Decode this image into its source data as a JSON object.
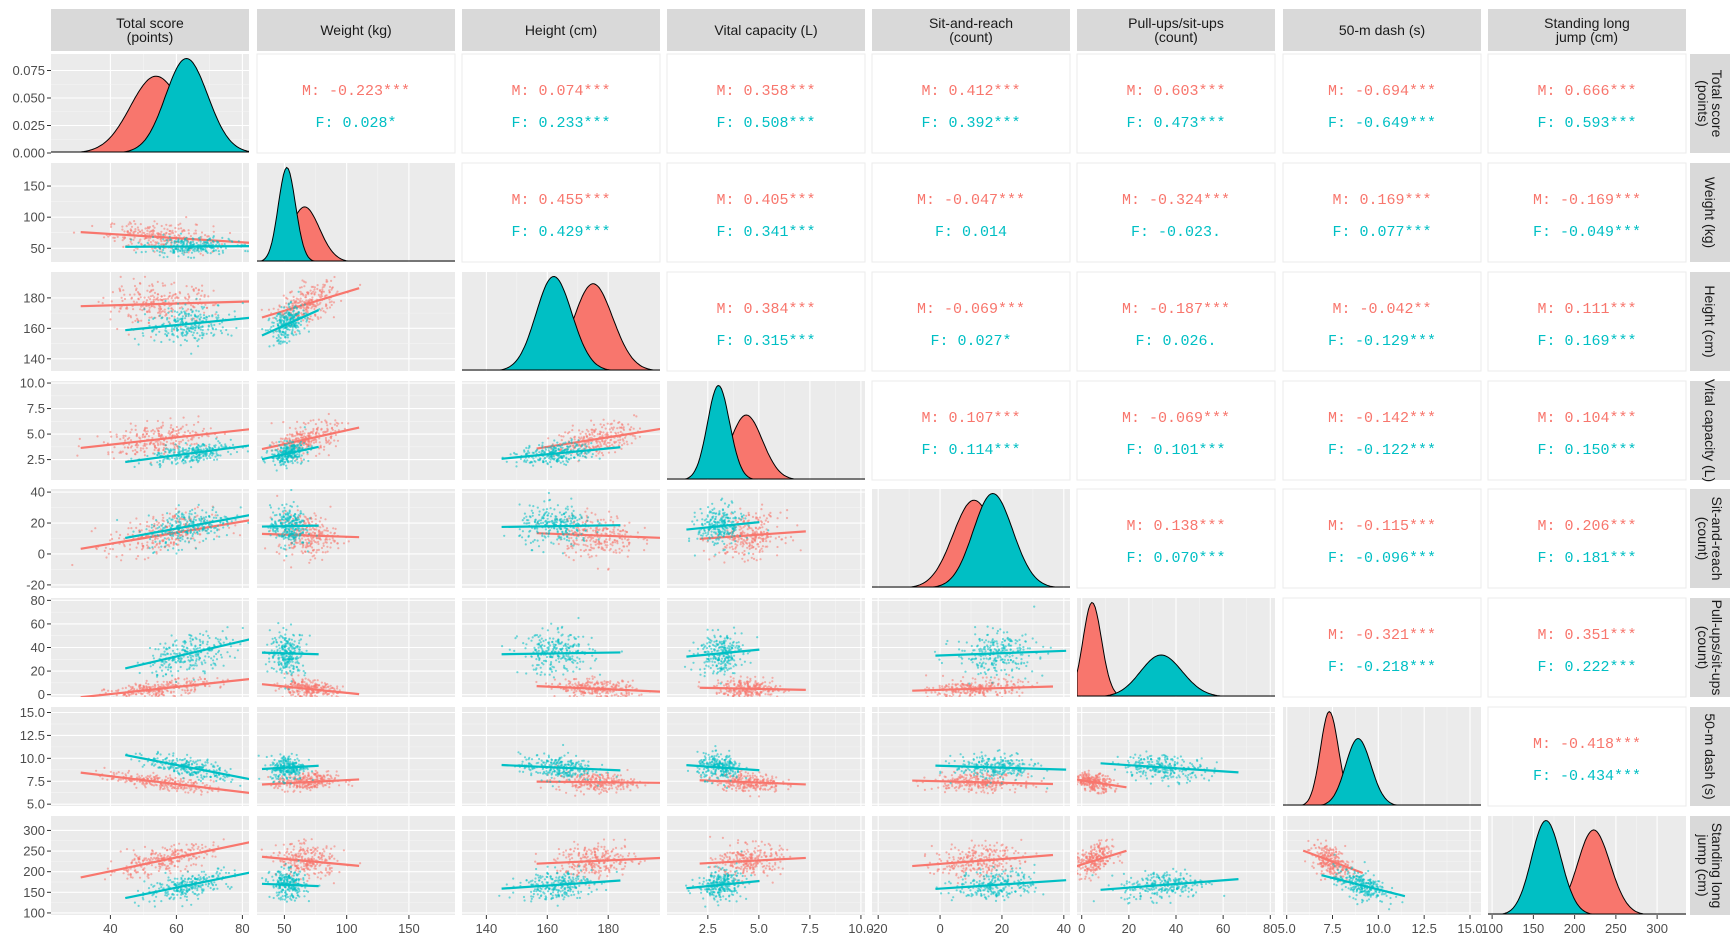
{
  "chart_data": {
    "type": "scatter",
    "title": "",
    "legend": "none",
    "grid": true,
    "groups": [
      {
        "key": "M",
        "label": "M",
        "color": "#F8766D"
      },
      {
        "key": "F",
        "label": "F",
        "color": "#00BFC4"
      }
    ],
    "variables": [
      {
        "name": "total_score",
        "label": [
          "Total score",
          "(points)"
        ],
        "row_label": [
          "Total score",
          "(points)"
        ],
        "range": [
          22,
          82
        ],
        "ticks": [
          {
            "v": 40,
            "label": "40"
          },
          {
            "v": 60,
            "label": "60"
          },
          {
            "v": 80,
            "label": "80"
          }
        ],
        "mean": {
          "M": 55,
          "F": 64
        },
        "sd": {
          "M": 8,
          "F": 6.5
        }
      },
      {
        "name": "weight",
        "label": [
          "Weight (kg)"
        ],
        "row_label": [
          "Weight (kg)"
        ],
        "range": [
          28,
          187
        ],
        "ticks": [
          {
            "v": 50,
            "label": "50"
          },
          {
            "v": 100,
            "label": "100"
          },
          {
            "v": 150,
            "label": "150"
          }
        ],
        "mean": {
          "M": 68,
          "F": 53
        },
        "sd": {
          "M": 12,
          "F": 7
        }
      },
      {
        "name": "height",
        "label": [
          "Height (cm)"
        ],
        "row_label": [
          "Height (cm)"
        ],
        "range": [
          132,
          197
        ],
        "ticks": [
          {
            "v": 140,
            "label": "140"
          },
          {
            "v": 160,
            "label": "160"
          },
          {
            "v": 180,
            "label": "180"
          }
        ],
        "mean": {
          "M": 176,
          "F": 163
        },
        "sd": {
          "M": 6.5,
          "F": 6
        }
      },
      {
        "name": "vital_capacity",
        "label": [
          "Vital capacity (L)"
        ],
        "row_label": [
          "Vital capacity (L)"
        ],
        "range": [
          0.5,
          10.2
        ],
        "ticks": [
          {
            "v": 2.5,
            "label": "2.5"
          },
          {
            "v": 5,
            "label": "5.0"
          },
          {
            "v": 7.5,
            "label": "7.5"
          },
          {
            "v": 10,
            "label": "10.0"
          }
        ],
        "mean": {
          "M": 4.5,
          "F": 3.1
        },
        "sd": {
          "M": 0.8,
          "F": 0.55
        }
      },
      {
        "name": "sit_and_reach",
        "label": [
          "Sit-and-reach",
          "(count)"
        ],
        "row_label": [
          "Sit-and-reach",
          "(count)"
        ],
        "range": [
          -22,
          42
        ],
        "ticks": [
          {
            "v": -20,
            "label": "-20"
          },
          {
            "v": 0,
            "label": "0"
          },
          {
            "v": 20,
            "label": "20"
          },
          {
            "v": 40,
            "label": "40"
          }
        ],
        "mean": {
          "M": 12,
          "F": 18
        },
        "sd": {
          "M": 7,
          "F": 6.5
        }
      },
      {
        "name": "pullups_situps",
        "label": [
          "Pull-ups/sit-ups",
          "(count)"
        ],
        "row_label": [
          "Pull-ups/sit-ups",
          "(count)"
        ],
        "range": [
          -2,
          82
        ],
        "ticks": [
          {
            "v": 0,
            "label": "0"
          },
          {
            "v": 20,
            "label": "20"
          },
          {
            "v": 40,
            "label": "40"
          },
          {
            "v": 60,
            "label": "60"
          },
          {
            "v": 80,
            "label": "80"
          }
        ],
        "mean": {
          "M": 5,
          "F": 35
        },
        "sd": {
          "M": 4,
          "F": 9
        }
      },
      {
        "name": "dash_50m",
        "label": [
          "50-m dash (s)"
        ],
        "row_label": [
          "50-m dash (s)"
        ],
        "range": [
          4.8,
          15.6
        ],
        "ticks": [
          {
            "v": 5,
            "label": "5.0"
          },
          {
            "v": 7.5,
            "label": "7.5"
          },
          {
            "v": 10,
            "label": "10.0"
          },
          {
            "v": 12.5,
            "label": "12.5"
          },
          {
            "v": 15,
            "label": "15.0"
          }
        ],
        "mean": {
          "M": 7.4,
          "F": 9.0
        },
        "sd": {
          "M": 0.5,
          "F": 0.7
        }
      },
      {
        "name": "long_jump",
        "label": [
          "Standing long",
          "jump (cm)"
        ],
        "row_label": [
          "Standing long",
          "jump (cm)"
        ],
        "range": [
          95,
          335
        ],
        "ticks": [
          {
            "v": 100,
            "label": "100"
          },
          {
            "v": 150,
            "label": "150"
          },
          {
            "v": 200,
            "label": "200"
          },
          {
            "v": 250,
            "label": "250"
          },
          {
            "v": 300,
            "label": "300"
          }
        ],
        "mean": {
          "M": 226,
          "F": 168
        },
        "sd": {
          "M": 20,
          "F": 18
        }
      }
    ],
    "diag_y_ticks": [
      {
        "v": 0,
        "label": "0.000"
      },
      {
        "v": 0.025,
        "label": "0.025"
      },
      {
        "v": 0.05,
        "label": "0.050"
      },
      {
        "v": 0.075,
        "label": "0.075"
      }
    ],
    "diag_y_max": 0.09,
    "row_y_ticks": [
      null,
      [
        {
          "v": 50,
          "label": "50"
        },
        {
          "v": 100,
          "label": "100"
        },
        {
          "v": 150,
          "label": "150"
        }
      ],
      [
        {
          "v": 140,
          "label": "140"
        },
        {
          "v": 160,
          "label": "160"
        },
        {
          "v": 180,
          "label": "180"
        }
      ],
      [
        {
          "v": 2.5,
          "label": "2.5"
        },
        {
          "v": 5,
          "label": "5.0"
        },
        {
          "v": 7.5,
          "label": "7.5"
        },
        {
          "v": 10,
          "label": "10.0"
        }
      ],
      [
        {
          "v": -20,
          "label": "-20"
        },
        {
          "v": 0,
          "label": "0"
        },
        {
          "v": 20,
          "label": "20"
        },
        {
          "v": 40,
          "label": "40"
        }
      ],
      [
        {
          "v": 0,
          "label": "0"
        },
        {
          "v": 20,
          "label": "20"
        },
        {
          "v": 40,
          "label": "40"
        },
        {
          "v": 60,
          "label": "60"
        },
        {
          "v": 80,
          "label": "80"
        }
      ],
      [
        {
          "v": 5,
          "label": "5.0"
        },
        {
          "v": 7.5,
          "label": "7.5"
        },
        {
          "v": 10,
          "label": "10.0"
        },
        {
          "v": 12.5,
          "label": "12.5"
        },
        {
          "v": 15,
          "label": "15.0"
        }
      ],
      [
        {
          "v": 100,
          "label": "100"
        },
        {
          "v": 150,
          "label": "150"
        },
        {
          "v": 200,
          "label": "200"
        },
        {
          "v": 250,
          "label": "250"
        },
        {
          "v": 300,
          "label": "300"
        }
      ]
    ],
    "row_y_ranges": [
      null,
      [
        28,
        187
      ],
      [
        132,
        197
      ],
      [
        0.5,
        10.2
      ],
      [
        -22,
        42
      ],
      [
        -2,
        82
      ],
      [
        4.8,
        15.6
      ],
      [
        95,
        335
      ]
    ],
    "correlations": [
      {
        "row": 0,
        "col": 1,
        "M": "-0.223***",
        "F": "0.028*"
      },
      {
        "row": 0,
        "col": 2,
        "M": "0.074***",
        "F": "0.233***"
      },
      {
        "row": 0,
        "col": 3,
        "M": "0.358***",
        "F": "0.508***"
      },
      {
        "row": 0,
        "col": 4,
        "M": "0.412***",
        "F": "0.392***"
      },
      {
        "row": 0,
        "col": 5,
        "M": "0.603***",
        "F": "0.473***"
      },
      {
        "row": 0,
        "col": 6,
        "M": "-0.694***",
        "F": "-0.649***"
      },
      {
        "row": 0,
        "col": 7,
        "M": "0.666***",
        "F": "0.593***"
      },
      {
        "row": 1,
        "col": 2,
        "M": "0.455***",
        "F": "0.429***"
      },
      {
        "row": 1,
        "col": 3,
        "M": "0.405***",
        "F": "0.341***"
      },
      {
        "row": 1,
        "col": 4,
        "M": "-0.047***",
        "F": "0.014"
      },
      {
        "row": 1,
        "col": 5,
        "M": "-0.324***",
        "F": "-0.023."
      },
      {
        "row": 1,
        "col": 6,
        "M": "0.169***",
        "F": "0.077***"
      },
      {
        "row": 1,
        "col": 7,
        "M": "-0.169***",
        "F": "-0.049***"
      },
      {
        "row": 2,
        "col": 3,
        "M": "0.384***",
        "F": "0.315***"
      },
      {
        "row": 2,
        "col": 4,
        "M": "-0.069***",
        "F": "0.027*"
      },
      {
        "row": 2,
        "col": 5,
        "M": "-0.187***",
        "F": "0.026."
      },
      {
        "row": 2,
        "col": 6,
        "M": "-0.042**",
        "F": "-0.129***"
      },
      {
        "row": 2,
        "col": 7,
        "M": "0.111***",
        "F": "0.169***"
      },
      {
        "row": 3,
        "col": 4,
        "M": "0.107***",
        "F": "0.114***"
      },
      {
        "row": 3,
        "col": 5,
        "M": "-0.069***",
        "F": "0.101***"
      },
      {
        "row": 3,
        "col": 6,
        "M": "-0.142***",
        "F": "-0.122***"
      },
      {
        "row": 3,
        "col": 7,
        "M": "0.104***",
        "F": "0.150***"
      },
      {
        "row": 4,
        "col": 5,
        "M": "0.138***",
        "F": "0.070***"
      },
      {
        "row": 4,
        "col": 6,
        "M": "-0.115***",
        "F": "-0.096***"
      },
      {
        "row": 4,
        "col": 7,
        "M": "0.206***",
        "F": "0.181***"
      },
      {
        "row": 5,
        "col": 6,
        "M": "-0.321***",
        "F": "-0.218***"
      },
      {
        "row": 5,
        "col": 7,
        "M": "0.351***",
        "F": "0.222***"
      },
      {
        "row": 6,
        "col": 7,
        "M": "-0.418***",
        "F": "-0.434***"
      }
    ]
  }
}
